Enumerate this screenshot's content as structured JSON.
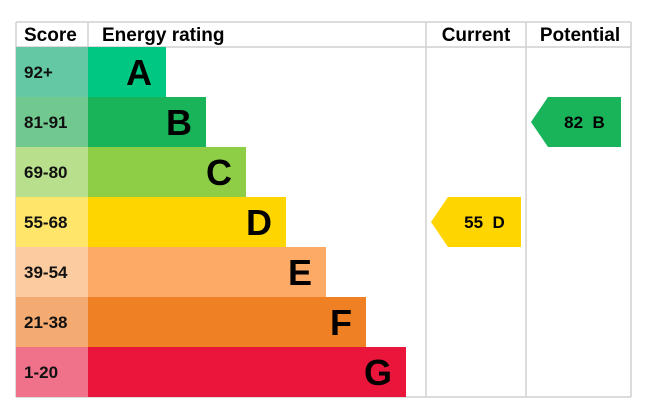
{
  "chart_data": {
    "type": "table",
    "headers": {
      "score": "Score",
      "rating": "Energy rating",
      "current": "Current",
      "potential": "Potential"
    },
    "bands": [
      {
        "letter": "A",
        "range": "92+",
        "color": "#00c781",
        "score_color": "#64c8a4"
      },
      {
        "letter": "B",
        "range": "81-91",
        "color": "#19b459",
        "score_color": "#72c98f"
      },
      {
        "letter": "C",
        "range": "69-80",
        "color": "#8dce46",
        "score_color": "#b8df8c"
      },
      {
        "letter": "D",
        "range": "55-68",
        "color": "#ffd500",
        "score_color": "#ffe56a"
      },
      {
        "letter": "E",
        "range": "39-54",
        "color": "#fcaa65",
        "score_color": "#fdcba0"
      },
      {
        "letter": "F",
        "range": "21-38",
        "color": "#ef8023",
        "score_color": "#f4ab72"
      },
      {
        "letter": "G",
        "range": "1-20",
        "color": "#e9153b",
        "score_color": "#f0718a"
      }
    ],
    "current": {
      "value": 55,
      "band": "D",
      "label": "55  D",
      "color": "#ffd500"
    },
    "potential": {
      "value": 82,
      "band": "B",
      "label": "82  B",
      "color": "#19b459"
    }
  }
}
